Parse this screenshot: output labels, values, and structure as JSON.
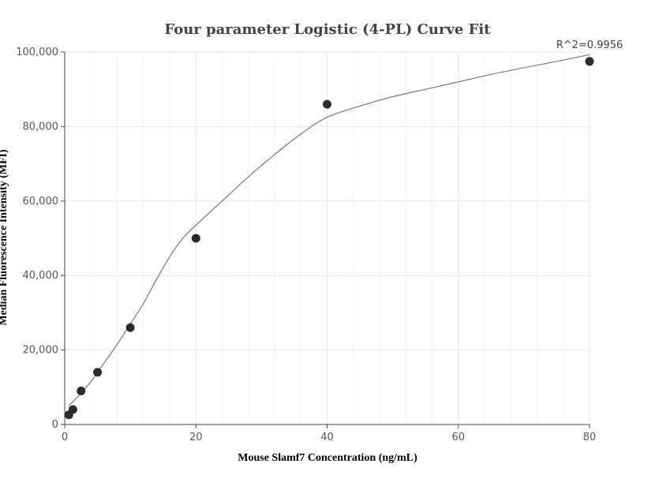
{
  "chart_data": {
    "type": "scatter",
    "title": "Four parameter Logistic (4-PL) Curve Fit",
    "xlabel": "Mouse Slamf7 Concentration (ng/mL)",
    "ylabel": "Median Fluorescence Intensity (MFI)",
    "xlim": [
      0,
      80
    ],
    "ylim": [
      0,
      100000
    ],
    "x_ticks": [
      0,
      20,
      40,
      60,
      80
    ],
    "y_ticks": [
      0,
      20000,
      40000,
      60000,
      80000,
      100000
    ],
    "x_tick_labels": [
      "0",
      "20",
      "40",
      "60",
      "80"
    ],
    "y_tick_labels": [
      "0",
      "20,000",
      "40,000",
      "60,000",
      "80,000",
      "100,000"
    ],
    "grid": true,
    "annotation": "R^2=0.9956",
    "series": [
      {
        "kind": "points",
        "x": [
          0.625,
          1.25,
          2.5,
          5,
          10,
          20,
          40,
          80
        ],
        "y": [
          2600,
          4000,
          9000,
          14000,
          26000,
          50000,
          86000,
          97500
        ]
      },
      {
        "kind": "fit-curve",
        "x": [
          0.625,
          2,
          4,
          5,
          6,
          8,
          10,
          12,
          14,
          16,
          18,
          20,
          24,
          28,
          32,
          36,
          40,
          45,
          50,
          55,
          60,
          65,
          70,
          75,
          80
        ],
        "y": [
          5000,
          7500,
          11500,
          14000,
          16500,
          21500,
          27000,
          32500,
          39000,
          45000,
          50000,
          53500,
          60000,
          66500,
          72500,
          78000,
          82500,
          85500,
          88000,
          90000,
          92000,
          94000,
          95800,
          97500,
          99300
        ]
      }
    ],
    "colors": {
      "points": "#2b2b2b",
      "curve": "#777777",
      "grid": "#e3e6ee"
    }
  }
}
